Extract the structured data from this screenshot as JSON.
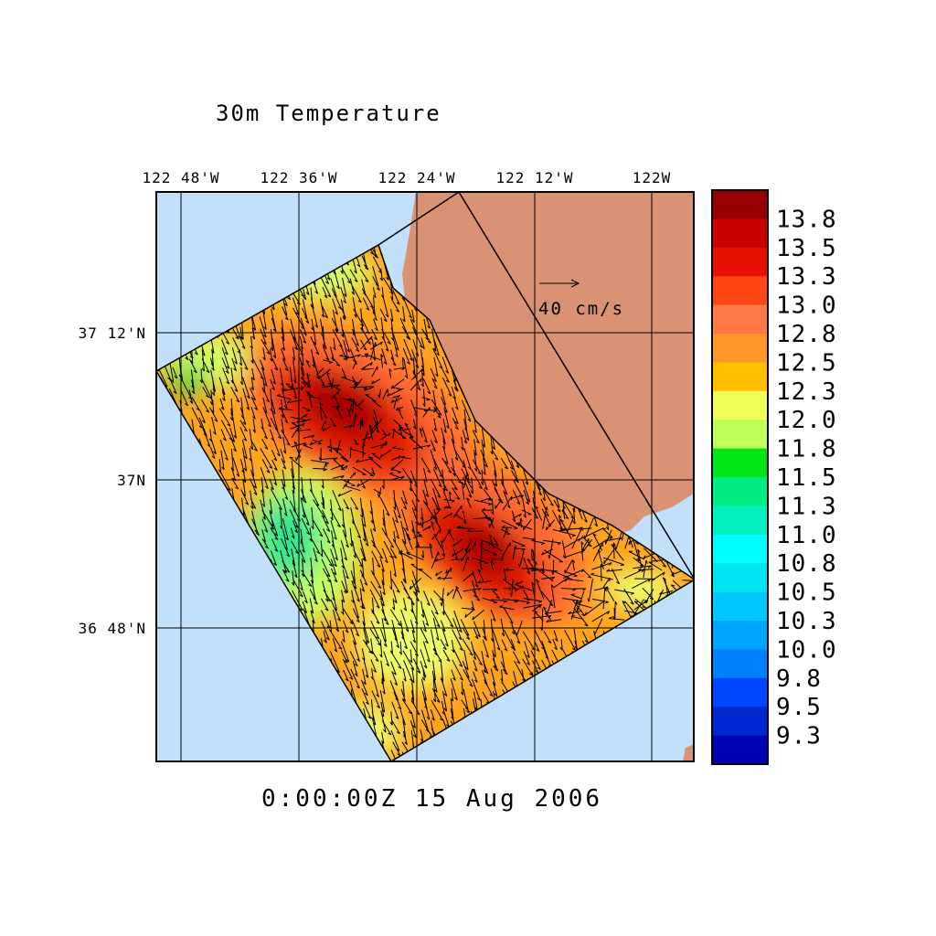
{
  "title": "30m Temperature",
  "timestamp": "0:00:00Z  15 Aug 2006",
  "vector_scale_label": "40 cm/s",
  "longitude_ticks": [
    "122 48'W",
    "122 36'W",
    "122 24'W",
    "122 12'W",
    "122W"
  ],
  "latitude_ticks": [
    "37 12'N",
    "37N",
    "36 48'N"
  ],
  "colorbar": {
    "labels": [
      "13.8",
      "13.5",
      "13.3",
      "13.0",
      "12.8",
      "12.5",
      "12.3",
      "12.0",
      "11.8",
      "11.5",
      "11.3",
      "11.0",
      "10.8",
      "10.5",
      "10.3",
      "10.0",
      "9.8",
      "9.5",
      "9.3"
    ],
    "colors": [
      "#960000",
      "#c80000",
      "#e60f00",
      "#ff4614",
      "#ff7846",
      "#ff9628",
      "#ffbe00",
      "#f0ff5a",
      "#beff5a",
      "#00e614",
      "#00eb82",
      "#00f0be",
      "#00ffff",
      "#00e6f0",
      "#00c8ff",
      "#00a5ff",
      "#0082ff",
      "#0046ff",
      "#0028d2",
      "#0000b4"
    ]
  },
  "colors": {
    "ocean": "#c2e0fa",
    "land": "#d99273",
    "grid": "#000000"
  }
}
